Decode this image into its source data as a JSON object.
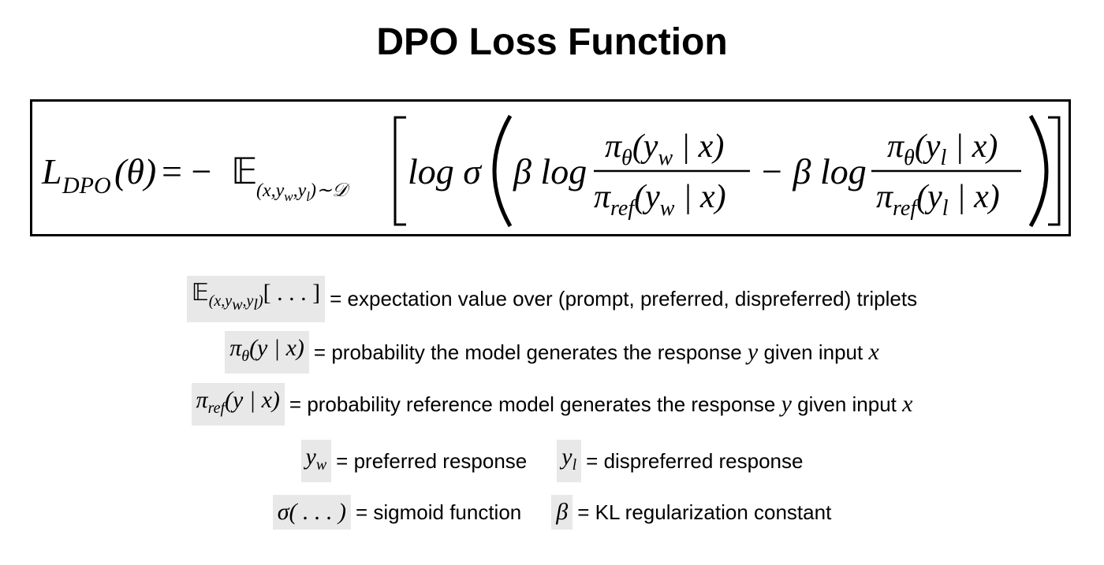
{
  "title": "DPO Loss Function",
  "formula": {
    "lhs_L": "L",
    "lhs_sub": "DPO",
    "lhs_arg": "(θ)",
    "equals_minus": "= −",
    "expect": "𝔼",
    "expect_sub": "(x,y",
    "expect_sub_w": "w",
    "expect_sub_mid": ",y",
    "expect_sub_l": "l",
    "expect_sub_end": ")∼𝒟",
    "log_sigma": "log σ",
    "beta_log_1": "β log",
    "num1": "π",
    "num1_sub": "θ",
    "num1_arg": "(y",
    "num1_arg_sub": "w",
    "num1_arg_end": " | x)",
    "den1": "π",
    "den1_sub": "ref",
    "den1_arg": "(y",
    "den1_arg_sub": "w",
    "den1_arg_end": " | x)",
    "minus_beta_log_2": "− β log",
    "num2": "π",
    "num2_sub": "θ",
    "num2_arg": "(y",
    "num2_arg_sub": "l",
    "num2_arg_end": " | x)",
    "den2": "π",
    "den2_sub": "ref",
    "den2_arg": "(y",
    "den2_arg_sub": "l",
    "den2_arg_end": " | x)"
  },
  "definitions": {
    "expectation": {
      "sym_main": "𝔼",
      "sym_sub": "(x,y",
      "sym_sub_w": "w",
      "sym_sub_mid": ",y",
      "sym_sub_l": "l",
      "sym_sub_end": ")",
      "sym_tail": "[ . . . ]",
      "text": "= expectation value over (prompt, preferred, dispreferred) triplets"
    },
    "policy": {
      "sym_main": "π",
      "sym_sub": "θ",
      "sym_tail": "(y | x)",
      "text_a": "= probability the model generates the response",
      "var_y": "y",
      "text_b": "given input",
      "var_x": "x"
    },
    "reference": {
      "sym_main": "π",
      "sym_sub": "ref",
      "sym_tail": "(y | x)",
      "text_a": "= probability reference model generates the response",
      "var_y": "y",
      "text_b": "given input",
      "var_x": "x"
    },
    "preferred": {
      "sym_main": "y",
      "sym_sub": "w",
      "text": "= preferred response"
    },
    "dispreferred": {
      "sym_main": "y",
      "sym_sub": "l",
      "text": "= dispreferred response"
    },
    "sigmoid": {
      "sym": "σ( . . . )",
      "text": "= sigmoid function"
    },
    "beta": {
      "sym": "β",
      "text": "= KL regularization constant"
    }
  }
}
